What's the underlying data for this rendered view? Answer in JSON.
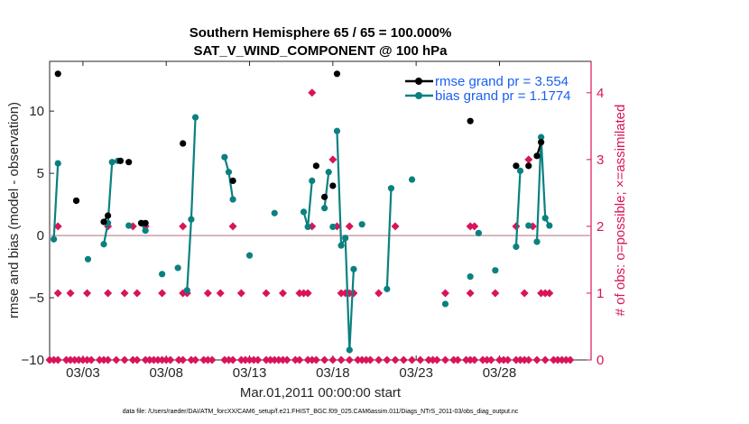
{
  "chart_data": {
    "type": "line",
    "title_line1": "Southern Hemisphere 65 / 65 = 100.000%",
    "title_line2": "SAT_V_WIND_COMPONENT @ 100 hPa",
    "xlabel": "Mar.01,2011 00:00:00 start",
    "ylabel_left": "rmse and bias (model - observation)",
    "ylabel_right": "# of obs: o=possible; ×=assimilated",
    "footer": "data file: /Users/raeder/DAI/ATM_forcXX/CAM6_setup/f.e21.FHIST_BGC.f09_025.CAM6assim.011/Diags_NTrS_2011-03/obs_diag_output.nc",
    "xlim": [
      1,
      33.5
    ],
    "ylim": [
      -10,
      14
    ],
    "ylim_right": [
      0,
      4.47
    ],
    "x_ticks": [
      3,
      8,
      13,
      18,
      23,
      28
    ],
    "x_tick_labels": [
      "03/03",
      "03/08",
      "03/13",
      "03/18",
      "03/23",
      "03/28"
    ],
    "y_ticks": [
      -10,
      -5,
      0,
      5,
      10
    ],
    "y_tick_labels": [
      "−10",
      "−5",
      "0",
      "5",
      "10"
    ],
    "y2_ticks": [
      0,
      1,
      2,
      3,
      4
    ],
    "y2_tick_labels": [
      "0",
      "1",
      "2",
      "3",
      "4"
    ],
    "colors": {
      "rmse": "#000000",
      "bias": "#0b8080",
      "count": "#d8145a",
      "zero_line": "#c8a0a8",
      "legend_text": "#1a5ff0"
    },
    "series": [
      {
        "name": "rmse grand pr = 3.554",
        "points": [
          [
            1.5,
            13.0
          ],
          [
            2.6,
            2.8
          ],
          [
            4.25,
            1.1
          ],
          [
            4.5,
            1.6
          ],
          [
            5.25,
            6.0
          ],
          [
            5.75,
            5.9
          ],
          [
            6.5,
            1.0
          ],
          [
            6.75,
            1.0
          ],
          [
            9.0,
            7.4
          ],
          [
            12.0,
            4.4
          ],
          [
            17.0,
            5.6
          ],
          [
            17.5,
            3.1
          ],
          [
            18.0,
            4.0
          ],
          [
            18.25,
            13.0
          ],
          [
            26.25,
            9.2
          ],
          [
            29.0,
            5.6
          ],
          [
            29.75,
            5.6
          ],
          [
            30.25,
            6.4
          ],
          [
            30.5,
            7.5
          ]
        ],
        "connect": [
          [
            0
          ],
          [
            1
          ],
          [
            2,
            3
          ],
          [
            4
          ],
          [
            5
          ],
          [
            6,
            7
          ],
          [
            8
          ],
          [
            9
          ],
          [
            10
          ],
          [
            11
          ],
          [
            12
          ],
          [
            13
          ],
          [
            14
          ],
          [
            15
          ],
          [
            16
          ],
          [
            17,
            18
          ]
        ]
      },
      {
        "name": "bias grand pr = 1.1774",
        "points": [
          [
            1.25,
            -0.3
          ],
          [
            1.5,
            5.8
          ],
          [
            2.6,
            2.8
          ],
          [
            3.3,
            -1.9
          ],
          [
            4.25,
            -0.7
          ],
          [
            4.5,
            1.0
          ],
          [
            4.75,
            5.9
          ],
          [
            5.1,
            6.0
          ],
          [
            5.75,
            0.8
          ],
          [
            6.5,
            1.0
          ],
          [
            6.75,
            0.4
          ],
          [
            7.75,
            -3.1
          ],
          [
            8.7,
            -2.6
          ],
          [
            9.25,
            -4.4
          ],
          [
            9.5,
            1.3
          ],
          [
            9.75,
            9.5
          ],
          [
            11.5,
            6.3
          ],
          [
            11.75,
            5.1
          ],
          [
            12.0,
            2.9
          ],
          [
            13.0,
            -1.6
          ],
          [
            14.5,
            1.8
          ],
          [
            16.25,
            1.9
          ],
          [
            16.5,
            0.7
          ],
          [
            16.75,
            4.4
          ],
          [
            17.5,
            2.2
          ],
          [
            17.75,
            5.1
          ],
          [
            18.0,
            0.7
          ],
          [
            18.25,
            8.4
          ],
          [
            18.5,
            -0.8
          ],
          [
            18.75,
            -0.2
          ],
          [
            19.0,
            -9.2
          ],
          [
            19.25,
            -2.7
          ],
          [
            19.75,
            0.9
          ],
          [
            21.25,
            -4.3
          ],
          [
            21.5,
            3.8
          ],
          [
            22.75,
            4.5
          ],
          [
            24.75,
            -5.5
          ],
          [
            26.25,
            -3.3
          ],
          [
            26.75,
            0.2
          ],
          [
            27.75,
            -2.8
          ],
          [
            29.0,
            -0.9
          ],
          [
            29.25,
            5.2
          ],
          [
            29.75,
            0.8
          ],
          [
            30.25,
            -0.5
          ],
          [
            30.5,
            7.9
          ],
          [
            30.75,
            1.4
          ],
          [
            31.0,
            0.8
          ]
        ],
        "connect": [
          [
            0,
            1
          ],
          [
            2
          ],
          [
            3
          ],
          [
            4,
            5,
            6,
            7
          ],
          [
            8
          ],
          [
            9,
            10
          ],
          [
            11
          ],
          [
            12
          ],
          [
            13,
            14,
            15
          ],
          [
            16,
            17,
            18
          ],
          [
            19
          ],
          [
            20
          ],
          [
            21,
            22,
            23
          ],
          [
            24,
            25
          ],
          [
            26
          ],
          [
            27,
            28,
            29,
            30,
            31
          ],
          [
            32
          ],
          [
            33,
            34
          ],
          [
            35
          ],
          [
            36
          ],
          [
            37
          ],
          [
            38
          ],
          [
            39
          ],
          [
            40,
            41
          ],
          [
            42
          ],
          [
            43,
            44,
            45,
            46
          ]
        ]
      },
      {
        "name": "# obs possible / assimilated",
        "axis": "right",
        "points": [
          [
            1.0,
            0
          ],
          [
            1.25,
            0
          ],
          [
            1.5,
            0
          ],
          [
            2.0,
            0
          ],
          [
            2.25,
            0
          ],
          [
            2.5,
            0
          ],
          [
            2.75,
            0
          ],
          [
            3.0,
            0
          ],
          [
            3.25,
            0
          ],
          [
            3.5,
            0
          ],
          [
            4.0,
            0
          ],
          [
            4.25,
            0
          ],
          [
            4.5,
            0
          ],
          [
            5.0,
            0
          ],
          [
            5.5,
            0
          ],
          [
            6.0,
            0
          ],
          [
            6.25,
            0
          ],
          [
            6.75,
            0
          ],
          [
            7.0,
            0
          ],
          [
            7.25,
            0
          ],
          [
            7.5,
            0
          ],
          [
            7.75,
            0
          ],
          [
            8.0,
            0
          ],
          [
            8.25,
            0
          ],
          [
            8.75,
            0
          ],
          [
            9.0,
            0
          ],
          [
            9.5,
            0
          ],
          [
            9.75,
            0
          ],
          [
            10.25,
            0
          ],
          [
            10.5,
            0
          ],
          [
            10.75,
            0
          ],
          [
            11.5,
            0
          ],
          [
            11.75,
            0
          ],
          [
            12.0,
            0
          ],
          [
            12.5,
            0
          ],
          [
            12.75,
            0
          ],
          [
            13.0,
            0
          ],
          [
            13.25,
            0
          ],
          [
            13.5,
            0
          ],
          [
            14.0,
            0
          ],
          [
            14.25,
            0
          ],
          [
            14.5,
            0
          ],
          [
            14.75,
            0
          ],
          [
            15.0,
            0
          ],
          [
            15.25,
            0
          ],
          [
            15.75,
            0
          ],
          [
            16.0,
            0
          ],
          [
            16.5,
            0
          ],
          [
            16.75,
            0
          ],
          [
            17.0,
            0
          ],
          [
            17.5,
            0
          ],
          [
            18.0,
            0
          ],
          [
            18.5,
            0
          ],
          [
            19.0,
            0
          ],
          [
            19.5,
            0
          ],
          [
            19.75,
            0
          ],
          [
            20.0,
            0
          ],
          [
            20.25,
            0
          ],
          [
            20.75,
            0
          ],
          [
            21.25,
            0
          ],
          [
            21.75,
            0
          ],
          [
            22.25,
            0
          ],
          [
            22.75,
            0
          ],
          [
            23.25,
            0
          ],
          [
            23.75,
            0
          ],
          [
            24.0,
            0
          ],
          [
            24.25,
            0
          ],
          [
            24.75,
            0
          ],
          [
            25.25,
            0
          ],
          [
            25.5,
            0
          ],
          [
            26.0,
            0
          ],
          [
            26.25,
            0
          ],
          [
            26.5,
            0
          ],
          [
            27.0,
            0
          ],
          [
            27.25,
            0
          ],
          [
            27.5,
            0
          ],
          [
            28.0,
            0
          ],
          [
            28.25,
            0
          ],
          [
            28.5,
            0
          ],
          [
            29.0,
            0
          ],
          [
            29.25,
            0
          ],
          [
            29.5,
            0
          ],
          [
            29.75,
            0
          ],
          [
            30.25,
            0
          ],
          [
            30.75,
            0
          ],
          [
            31.25,
            0
          ],
          [
            31.5,
            0
          ],
          [
            31.75,
            0
          ],
          [
            32.0,
            0
          ],
          [
            32.25,
            0
          ],
          [
            1.5,
            1
          ],
          [
            2.25,
            1
          ],
          [
            3.25,
            1
          ],
          [
            4.5,
            1
          ],
          [
            5.5,
            1
          ],
          [
            6.25,
            1
          ],
          [
            7.75,
            1
          ],
          [
            9.0,
            1
          ],
          [
            9.25,
            1
          ],
          [
            10.5,
            1
          ],
          [
            11.25,
            1
          ],
          [
            12.5,
            1
          ],
          [
            14.0,
            1
          ],
          [
            15.0,
            1
          ],
          [
            16.0,
            1
          ],
          [
            16.25,
            1
          ],
          [
            16.5,
            1
          ],
          [
            18.5,
            1
          ],
          [
            18.75,
            1
          ],
          [
            19.0,
            1
          ],
          [
            19.25,
            1
          ],
          [
            20.75,
            1
          ],
          [
            24.75,
            1
          ],
          [
            26.25,
            1
          ],
          [
            27.75,
            1
          ],
          [
            29.5,
            1
          ],
          [
            30.5,
            1
          ],
          [
            30.75,
            1
          ],
          [
            31.0,
            1
          ],
          [
            1.5,
            2
          ],
          [
            4.5,
            2
          ],
          [
            6.0,
            2
          ],
          [
            6.75,
            2
          ],
          [
            9.0,
            2
          ],
          [
            12.0,
            2
          ],
          [
            16.75,
            2
          ],
          [
            18.25,
            2
          ],
          [
            19.0,
            2
          ],
          [
            21.75,
            2
          ],
          [
            26.25,
            2
          ],
          [
            26.5,
            2
          ],
          [
            29.0,
            2
          ],
          [
            30.0,
            2
          ],
          [
            16.75,
            4
          ],
          [
            18.0,
            3
          ],
          [
            29.75,
            3
          ]
        ]
      }
    ]
  }
}
